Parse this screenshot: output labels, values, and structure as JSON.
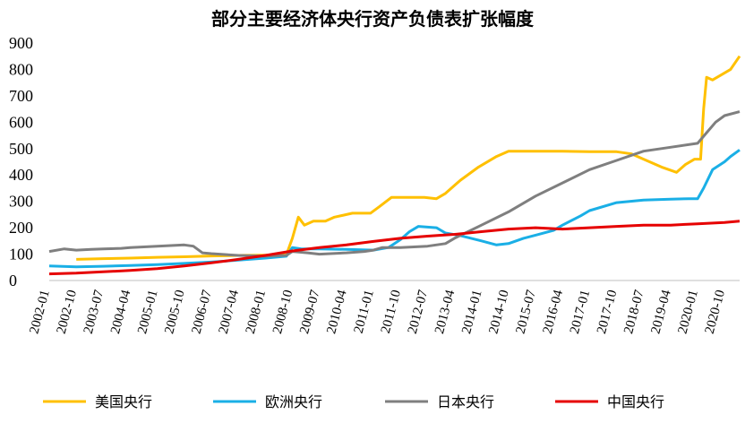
{
  "chart_data": {
    "type": "line",
    "title": "部分主要经济体央行资产负债表扩张幅度",
    "ylim": [
      0,
      900
    ],
    "yticks": [
      0,
      100,
      200,
      300,
      400,
      500,
      600,
      700,
      800,
      900
    ],
    "xticks": [
      "2002-01",
      "2002-10",
      "2003-07",
      "2004-04",
      "2005-01",
      "2005-10",
      "2006-07",
      "2007-04",
      "2008-01",
      "2008-10",
      "2009-07",
      "2010-04",
      "2011-01",
      "2011-10",
      "2012-07",
      "2013-04",
      "2014-01",
      "2014-10",
      "2015-07",
      "2016-04",
      "2017-01",
      "2017-10",
      "2018-07",
      "2019-04",
      "2020-01",
      "2020-10"
    ],
    "x_range": [
      "2002-01",
      "2021-03"
    ],
    "grid": false,
    "legend_position": "bottom",
    "series": [
      {
        "name": "美国央行",
        "color": "#FFC000",
        "points": [
          [
            "2002-10",
            80
          ],
          [
            "2003-07",
            83
          ],
          [
            "2004-04",
            85
          ],
          [
            "2005-01",
            88
          ],
          [
            "2005-10",
            90
          ],
          [
            "2006-07",
            93
          ],
          [
            "2007-04",
            95
          ],
          [
            "2008-01",
            96
          ],
          [
            "2008-08",
            97
          ],
          [
            "2008-10",
            160
          ],
          [
            "2008-12",
            240
          ],
          [
            "2009-02",
            210
          ],
          [
            "2009-05",
            225
          ],
          [
            "2009-09",
            225
          ],
          [
            "2009-12",
            240
          ],
          [
            "2010-06",
            255
          ],
          [
            "2010-12",
            255
          ],
          [
            "2011-03",
            280
          ],
          [
            "2011-07",
            315
          ],
          [
            "2011-12",
            315
          ],
          [
            "2012-06",
            315
          ],
          [
            "2012-10",
            310
          ],
          [
            "2013-01",
            330
          ],
          [
            "2013-06",
            380
          ],
          [
            "2013-12",
            430
          ],
          [
            "2014-06",
            470
          ],
          [
            "2014-10",
            490
          ],
          [
            "2015-07",
            490
          ],
          [
            "2016-04",
            490
          ],
          [
            "2017-01",
            488
          ],
          [
            "2017-10",
            488
          ],
          [
            "2018-03",
            480
          ],
          [
            "2018-07",
            460
          ],
          [
            "2019-01",
            430
          ],
          [
            "2019-06",
            410
          ],
          [
            "2019-09",
            440
          ],
          [
            "2019-12",
            460
          ],
          [
            "2020-02",
            460
          ],
          [
            "2020-03",
            650
          ],
          [
            "2020-04",
            770
          ],
          [
            "2020-06",
            760
          ],
          [
            "2020-09",
            780
          ],
          [
            "2020-12",
            800
          ],
          [
            "2021-03",
            850
          ]
        ]
      },
      {
        "name": "欧洲央行",
        "color": "#1AAFE6",
        "points": [
          [
            "2002-01",
            55
          ],
          [
            "2002-10",
            52
          ],
          [
            "2003-07",
            54
          ],
          [
            "2004-04",
            57
          ],
          [
            "2005-01",
            60
          ],
          [
            "2005-10",
            65
          ],
          [
            "2006-07",
            70
          ],
          [
            "2007-04",
            77
          ],
          [
            "2008-01",
            85
          ],
          [
            "2008-08",
            92
          ],
          [
            "2008-10",
            125
          ],
          [
            "2009-01",
            120
          ],
          [
            "2009-07",
            120
          ],
          [
            "2010-04",
            118
          ],
          [
            "2011-01",
            115
          ],
          [
            "2011-06",
            125
          ],
          [
            "2011-10",
            155
          ],
          [
            "2012-01",
            185
          ],
          [
            "2012-04",
            205
          ],
          [
            "2012-10",
            200
          ],
          [
            "2013-01",
            180
          ],
          [
            "2013-06",
            170
          ],
          [
            "2014-01",
            150
          ],
          [
            "2014-06",
            135
          ],
          [
            "2014-10",
            140
          ],
          [
            "2015-03",
            160
          ],
          [
            "2015-07",
            172
          ],
          [
            "2016-01",
            190
          ],
          [
            "2016-04",
            210
          ],
          [
            "2016-10",
            245
          ],
          [
            "2017-01",
            265
          ],
          [
            "2017-10",
            295
          ],
          [
            "2018-07",
            305
          ],
          [
            "2019-04",
            308
          ],
          [
            "2019-10",
            310
          ],
          [
            "2020-01",
            310
          ],
          [
            "2020-03",
            350
          ],
          [
            "2020-06",
            420
          ],
          [
            "2020-10",
            450
          ],
          [
            "2020-12",
            470
          ],
          [
            "2021-03",
            495
          ]
        ]
      },
      {
        "name": "日本央行",
        "color": "#7F7F7F",
        "points": [
          [
            "2002-01",
            110
          ],
          [
            "2002-06",
            120
          ],
          [
            "2002-10",
            115
          ],
          [
            "2003-03",
            118
          ],
          [
            "2003-07",
            120
          ],
          [
            "2004-01",
            122
          ],
          [
            "2004-04",
            125
          ],
          [
            "2005-01",
            130
          ],
          [
            "2005-10",
            135
          ],
          [
            "2006-01",
            130
          ],
          [
            "2006-04",
            105
          ],
          [
            "2006-07",
            102
          ],
          [
            "2007-04",
            95
          ],
          [
            "2008-01",
            92
          ],
          [
            "2008-08",
            95
          ],
          [
            "2008-10",
            110
          ],
          [
            "2009-03",
            105
          ],
          [
            "2009-07",
            100
          ],
          [
            "2010-04",
            105
          ],
          [
            "2010-10",
            110
          ],
          [
            "2011-01",
            115
          ],
          [
            "2011-04",
            125
          ],
          [
            "2011-10",
            125
          ],
          [
            "2012-07",
            130
          ],
          [
            "2013-01",
            140
          ],
          [
            "2013-04",
            160
          ],
          [
            "2014-01",
            210
          ],
          [
            "2014-10",
            260
          ],
          [
            "2015-07",
            320
          ],
          [
            "2016-04",
            370
          ],
          [
            "2017-01",
            420
          ],
          [
            "2017-10",
            455
          ],
          [
            "2018-07",
            490
          ],
          [
            "2019-04",
            505
          ],
          [
            "2020-01",
            520
          ],
          [
            "2020-04",
            560
          ],
          [
            "2020-07",
            600
          ],
          [
            "2020-10",
            625
          ],
          [
            "2021-03",
            640
          ]
        ]
      },
      {
        "name": "中国央行",
        "color": "#E60000",
        "points": [
          [
            "2002-01",
            25
          ],
          [
            "2002-10",
            28
          ],
          [
            "2003-07",
            33
          ],
          [
            "2004-04",
            38
          ],
          [
            "2005-01",
            45
          ],
          [
            "2005-10",
            55
          ],
          [
            "2006-07",
            67
          ],
          [
            "2007-04",
            80
          ],
          [
            "2008-01",
            95
          ],
          [
            "2008-10",
            112
          ],
          [
            "2009-07",
            125
          ],
          [
            "2010-04",
            135
          ],
          [
            "2011-01",
            148
          ],
          [
            "2011-10",
            160
          ],
          [
            "2012-07",
            168
          ],
          [
            "2013-04",
            175
          ],
          [
            "2014-01",
            185
          ],
          [
            "2014-10",
            195
          ],
          [
            "2015-07",
            200
          ],
          [
            "2016-04",
            195
          ],
          [
            "2017-01",
            200
          ],
          [
            "2017-10",
            205
          ],
          [
            "2018-07",
            210
          ],
          [
            "2019-04",
            210
          ],
          [
            "2020-01",
            215
          ],
          [
            "2020-10",
            220
          ],
          [
            "2021-03",
            225
          ]
        ]
      }
    ]
  }
}
